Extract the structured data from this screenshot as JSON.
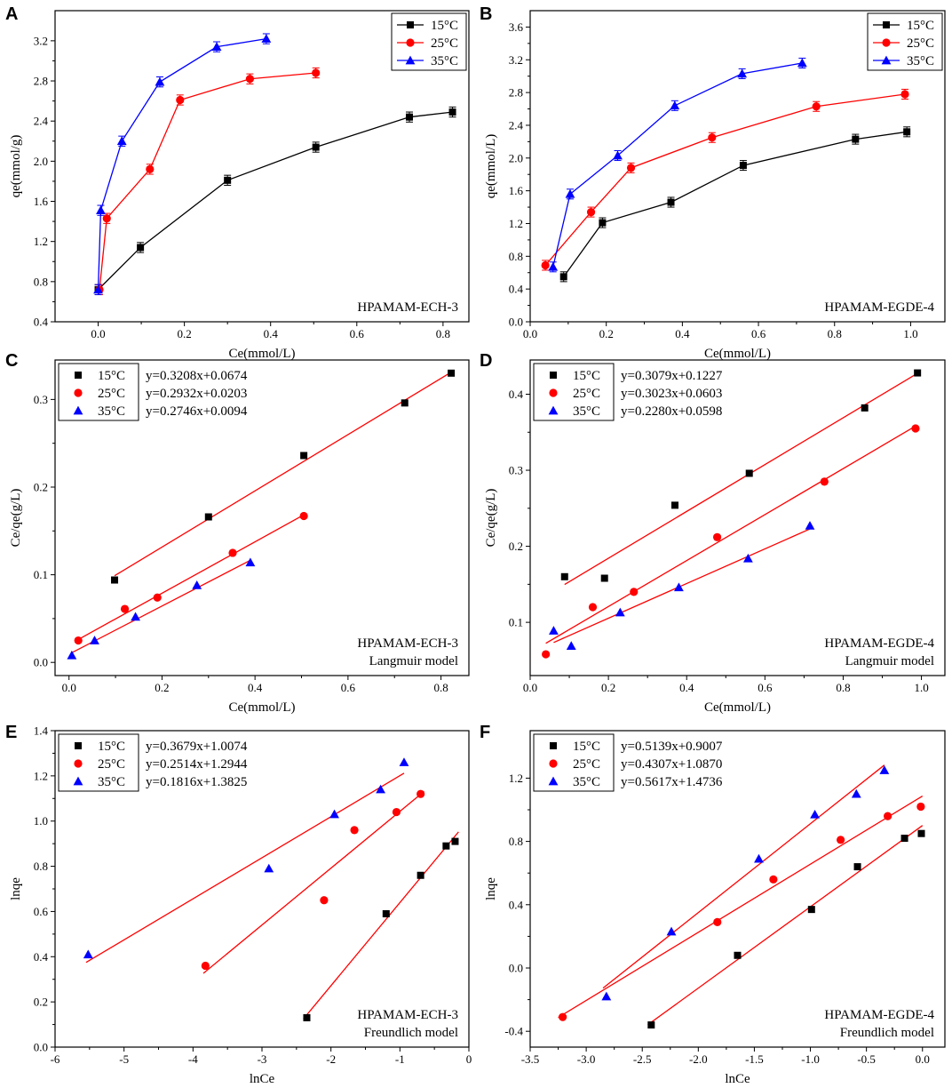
{
  "colors": {
    "15": "#000000",
    "25": "#ff0000",
    "35": "#0000ff",
    "fit": "#ff0000",
    "axis": "#000000"
  },
  "chart_data": [
    {
      "letter": "A",
      "type": "line",
      "title": "",
      "xlabel": "Ce(mmol/L)",
      "ylabel": "qe(mmol/g)",
      "xlim": [
        -0.1,
        0.86
      ],
      "ylim": [
        0.4,
        3.5
      ],
      "xticks": [
        "0.0",
        "0.2",
        "0.4",
        "0.6",
        "0.8"
      ],
      "xtick_values": [
        0,
        0.2,
        0.4,
        0.6,
        0.8
      ],
      "yticks": [
        "0.4",
        "0.8",
        "1.2",
        "1.6",
        "2.0",
        "2.4",
        "2.8",
        "3.2"
      ],
      "ytick_values": [
        0.4,
        0.8,
        1.2,
        1.6,
        2.0,
        2.4,
        2.8,
        3.2
      ],
      "legend": {
        "position": "top-right",
        "entries": [
          {
            "label": "15°C",
            "series": 0
          },
          {
            "label": "25°C",
            "series": 1
          },
          {
            "label": "35°C",
            "series": 2
          }
        ]
      },
      "annotations": [
        "HPAMAM-ECH-3"
      ],
      "annotation_position": "bottom-right",
      "series": [
        {
          "name": "15°C",
          "marker": "square",
          "color_key": "15",
          "error": 0.05,
          "x": [
            0.0,
            0.098,
            0.3,
            0.505,
            0.722,
            0.822
          ],
          "y": [
            0.72,
            1.14,
            1.81,
            2.14,
            2.44,
            2.49
          ]
        },
        {
          "name": "25°C",
          "marker": "circle",
          "color_key": "25",
          "error": 0.05,
          "x": [
            0.003,
            0.02,
            0.12,
            0.19,
            0.352,
            0.505
          ],
          "y": [
            0.72,
            1.43,
            1.92,
            2.61,
            2.82,
            2.88
          ]
        },
        {
          "name": "35°C",
          "marker": "triangle",
          "color_key": "35",
          "error": 0.05,
          "x": [
            0.0,
            0.006,
            0.055,
            0.143,
            0.275,
            0.39
          ],
          "y": [
            0.72,
            1.51,
            2.2,
            2.79,
            3.14,
            3.22
          ]
        }
      ]
    },
    {
      "letter": "B",
      "type": "line",
      "title": "",
      "xlabel": "Ce(mmol/L)",
      "ylabel": "qe(mmol/L)",
      "xlim": [
        0,
        1.09
      ],
      "ylim": [
        0,
        3.8
      ],
      "xticks": [
        "0.0",
        "0.2",
        "0.4",
        "0.6",
        "0.8",
        "1.0"
      ],
      "xtick_values": [
        0,
        0.2,
        0.4,
        0.6,
        0.8,
        1.0
      ],
      "yticks": [
        "0.0",
        "0.4",
        "0.8",
        "1.2",
        "1.6",
        "2.0",
        "2.4",
        "2.8",
        "3.2",
        "3.6"
      ],
      "ytick_values": [
        0,
        0.4,
        0.8,
        1.2,
        1.6,
        2.0,
        2.4,
        2.8,
        3.2,
        3.6
      ],
      "legend": {
        "position": "top-right",
        "entries": [
          {
            "label": "15°C",
            "series": 0
          },
          {
            "label": "25°C",
            "series": 1
          },
          {
            "label": "35°C",
            "series": 2
          }
        ]
      },
      "annotations": [
        "HPAMAM-EGDE-4"
      ],
      "annotation_position": "bottom-right",
      "series": [
        {
          "name": "15°C",
          "marker": "square",
          "color_key": "15",
          "error": 0.06,
          "x": [
            0.088,
            0.19,
            0.37,
            0.56,
            0.855,
            0.99
          ],
          "y": [
            0.55,
            1.21,
            1.46,
            1.91,
            2.23,
            2.32
          ]
        },
        {
          "name": "25°C",
          "marker": "circle",
          "color_key": "25",
          "error": 0.06,
          "x": [
            0.04,
            0.16,
            0.265,
            0.478,
            0.752,
            0.985
          ],
          "y": [
            0.69,
            1.34,
            1.88,
            2.25,
            2.63,
            2.78
          ]
        },
        {
          "name": "35°C",
          "marker": "triangle",
          "color_key": "35",
          "error": 0.06,
          "x": [
            0.06,
            0.105,
            0.23,
            0.38,
            0.557,
            0.715
          ],
          "y": [
            0.67,
            1.56,
            2.03,
            2.64,
            3.03,
            3.16
          ]
        }
      ]
    },
    {
      "letter": "C",
      "type": "scatter",
      "title": "",
      "xlabel": "Ce(mmol/L)",
      "ylabel": "Ce/qe(g/L)",
      "xlim": [
        -0.03,
        0.86
      ],
      "ylim": [
        -0.015,
        0.345
      ],
      "xticks": [
        "0.0",
        "0.2",
        "0.4",
        "0.6",
        "0.8"
      ],
      "xtick_values": [
        0,
        0.2,
        0.4,
        0.6,
        0.8
      ],
      "yticks": [
        "0.0",
        "0.1",
        "0.2",
        "0.3"
      ],
      "ytick_values": [
        0,
        0.1,
        0.2,
        0.3
      ],
      "legend": {
        "position": "top-left",
        "entries": [
          {
            "label": "15°C",
            "series": 0,
            "equation": "y=0.3208x+0.0674"
          },
          {
            "label": "25°C",
            "series": 1,
            "equation": "y=0.2932x+0.0203"
          },
          {
            "label": "35°C",
            "series": 2,
            "equation": "y=0.2746x+0.0094"
          }
        ]
      },
      "annotations": [
        "HPAMAM-ECH-3",
        "Langmuir model"
      ],
      "annotation_position": "bottom-right",
      "series": [
        {
          "name": "15°C",
          "marker": "square",
          "color_key": "15",
          "x": [
            0.098,
            0.3,
            0.505,
            0.722,
            0.822
          ],
          "y": [
            0.094,
            0.166,
            0.236,
            0.296,
            0.33
          ],
          "fit": [
            0.3208,
            0.0674
          ],
          "fit_range": [
            0.098,
            0.822
          ]
        },
        {
          "name": "25°C",
          "marker": "circle",
          "color_key": "25",
          "x": [
            0.02,
            0.12,
            0.19,
            0.352,
            0.505
          ],
          "y": [
            0.025,
            0.061,
            0.074,
            0.125,
            0.167
          ],
          "fit": [
            0.2932,
            0.0203
          ],
          "fit_range": [
            0.02,
            0.505
          ]
        },
        {
          "name": "35°C",
          "marker": "triangle",
          "color_key": "35",
          "x": [
            0.006,
            0.055,
            0.143,
            0.275,
            0.39
          ],
          "y": [
            0.008,
            0.025,
            0.052,
            0.088,
            0.114
          ],
          "fit": [
            0.2746,
            0.0094
          ],
          "fit_range": [
            0.006,
            0.39
          ]
        }
      ]
    },
    {
      "letter": "D",
      "type": "scatter",
      "title": "",
      "xlabel": "Ce(mmol/L)",
      "ylabel": "Ce/qe(g/L)",
      "xlim": [
        0,
        1.06
      ],
      "ylim": [
        0.03,
        0.445
      ],
      "xticks": [
        "0.0",
        "0.2",
        "0.4",
        "0.6",
        "0.8",
        "1.0"
      ],
      "xtick_values": [
        0,
        0.2,
        0.4,
        0.6,
        0.8,
        1.0
      ],
      "yticks": [
        "0.1",
        "0.2",
        "0.3",
        "0.4"
      ],
      "ytick_values": [
        0.1,
        0.2,
        0.3,
        0.4
      ],
      "legend": {
        "position": "top-left",
        "entries": [
          {
            "label": "15°C",
            "series": 0,
            "equation": "y=0.3079x+0.1227"
          },
          {
            "label": "25°C",
            "series": 1,
            "equation": "y=0.3023x+0.0603"
          },
          {
            "label": "35°C",
            "series": 2,
            "equation": "y=0.2280x+0.0598"
          }
        ]
      },
      "annotations": [
        "HPAMAM-EGDE-4",
        "Langmuir model"
      ],
      "annotation_position": "bottom-right",
      "series": [
        {
          "name": "15°C",
          "marker": "square",
          "color_key": "15",
          "x": [
            0.088,
            0.19,
            0.37,
            0.56,
            0.855,
            0.99
          ],
          "y": [
            0.16,
            0.158,
            0.254,
            0.296,
            0.382,
            0.428
          ],
          "fit": [
            0.3079,
            0.1227
          ],
          "fit_range": [
            0.088,
            0.99
          ]
        },
        {
          "name": "25°C",
          "marker": "circle",
          "color_key": "25",
          "x": [
            0.04,
            0.16,
            0.265,
            0.478,
            0.752,
            0.985
          ],
          "y": [
            0.058,
            0.12,
            0.14,
            0.212,
            0.285,
            0.355
          ],
          "fit": [
            0.3023,
            0.0603
          ],
          "fit_range": [
            0.04,
            0.985
          ]
        },
        {
          "name": "35°C",
          "marker": "triangle",
          "color_key": "35",
          "x": [
            0.06,
            0.105,
            0.23,
            0.38,
            0.557,
            0.715
          ],
          "y": [
            0.089,
            0.069,
            0.113,
            0.146,
            0.184,
            0.227
          ],
          "fit": [
            0.228,
            0.0598
          ],
          "fit_range": [
            0.06,
            0.715
          ]
        }
      ]
    },
    {
      "letter": "E",
      "type": "scatter",
      "title": "",
      "xlabel": "lnCe",
      "ylabel": "lnqe",
      "xlim": [
        -6,
        0
      ],
      "ylim": [
        0,
        1.4
      ],
      "xticks": [
        "-6",
        "-5",
        "-4",
        "-3",
        "-2",
        "-1",
        "0"
      ],
      "xtick_values": [
        -6,
        -5,
        -4,
        -3,
        -2,
        -1,
        0
      ],
      "yticks": [
        "0.0",
        "0.2",
        "0.4",
        "0.6",
        "0.8",
        "1.0",
        "1.2",
        "1.4"
      ],
      "ytick_values": [
        0,
        0.2,
        0.4,
        0.6,
        0.8,
        1.0,
        1.2,
        1.4
      ],
      "legend": {
        "position": "top-left",
        "entries": [
          {
            "label": "15°C",
            "series": 0,
            "equation": "y=0.3679x+1.0074"
          },
          {
            "label": "25°C",
            "series": 1,
            "equation": "y=0.2514x+1.2944"
          },
          {
            "label": "35°C",
            "series": 2,
            "equation": "y=0.1816x+1.3825"
          }
        ]
      },
      "annotations": [
        "HPAMAM-ECH-3",
        "Freundlich model"
      ],
      "annotation_position": "bottom-right",
      "series": [
        {
          "name": "15°C",
          "marker": "square",
          "color_key": "15",
          "x": [
            -2.35,
            -1.2,
            -0.7,
            -0.33,
            -0.2
          ],
          "y": [
            0.13,
            0.59,
            0.76,
            0.89,
            0.91
          ],
          "fit": [
            0.3679,
            1.0074
          ],
          "fit_range": [
            -2.4,
            -0.15
          ]
        },
        {
          "name": "25°C",
          "marker": "circle",
          "color_key": "25",
          "x": [
            -3.82,
            -2.1,
            -1.66,
            -1.05,
            -0.7
          ],
          "y": [
            0.36,
            0.65,
            0.96,
            1.04,
            1.12
          ],
          "fit": [
            0.2514,
            1.2944
          ],
          "fit_range": [
            -3.85,
            -0.65
          ]
        },
        {
          "name": "35°C",
          "marker": "triangle",
          "color_key": "35",
          "x": [
            -5.52,
            -2.9,
            -1.95,
            -1.28,
            -0.94
          ],
          "y": [
            0.41,
            0.79,
            1.03,
            1.14,
            1.26
          ],
          "fit": [
            0.1816,
            1.3825
          ],
          "fit_range": [
            -5.55,
            -0.94
          ]
        }
      ]
    },
    {
      "letter": "F",
      "type": "scatter",
      "title": "",
      "xlabel": "lnCe",
      "ylabel": "lnqe",
      "xlim": [
        -3.5,
        0.2
      ],
      "ylim": [
        -0.5,
        1.5
      ],
      "xticks": [
        "-3.5",
        "-3.0",
        "-2.5",
        "-2.0",
        "-1.5",
        "-1.0",
        "-0.5",
        "0.0"
      ],
      "xtick_values": [
        -3.5,
        -3.0,
        -2.5,
        -2.0,
        -1.5,
        -1.0,
        -0.5,
        0
      ],
      "yticks": [
        "-0.4",
        "0.0",
        "0.4",
        "0.8",
        "1.2"
      ],
      "ytick_values": [
        -0.4,
        0,
        0.4,
        0.8,
        1.2
      ],
      "legend": {
        "position": "top-left",
        "entries": [
          {
            "label": "15°C",
            "series": 0,
            "equation": "y=0.5139x+0.9007"
          },
          {
            "label": "25°C",
            "series": 1,
            "equation": "y=0.4307x+1.0870"
          },
          {
            "label": "35°C",
            "series": 2,
            "equation": "y=0.5617x+1.4736"
          }
        ]
      },
      "annotations": [
        "HPAMAM-EGDE-4",
        "Freundlich model"
      ],
      "annotation_position": "bottom-right",
      "series": [
        {
          "name": "15°C",
          "marker": "square",
          "color_key": "15",
          "x": [
            -2.42,
            -1.65,
            -0.99,
            -0.58,
            -0.16,
            -0.01
          ],
          "y": [
            -0.36,
            0.08,
            0.37,
            0.64,
            0.82,
            0.85
          ],
          "fit": [
            0.5139,
            0.9007
          ],
          "fit_range": [
            -2.45,
            0.0
          ]
        },
        {
          "name": "25°C",
          "marker": "circle",
          "color_key": "25",
          "x": [
            -3.21,
            -1.83,
            -1.33,
            -0.73,
            -0.31,
            -0.015
          ],
          "y": [
            -0.31,
            0.29,
            0.56,
            0.81,
            0.96,
            1.02
          ],
          "fit": [
            0.4307,
            1.087
          ],
          "fit_range": [
            -3.25,
            0.0
          ]
        },
        {
          "name": "35°C",
          "marker": "triangle",
          "color_key": "35",
          "x": [
            -2.82,
            -2.24,
            -1.46,
            -0.96,
            -0.59,
            -0.34
          ],
          "y": [
            -0.18,
            0.23,
            0.69,
            0.97,
            1.1,
            1.25
          ],
          "fit": [
            0.5617,
            1.4736
          ],
          "fit_range": [
            -2.85,
            -0.34
          ]
        }
      ]
    }
  ]
}
